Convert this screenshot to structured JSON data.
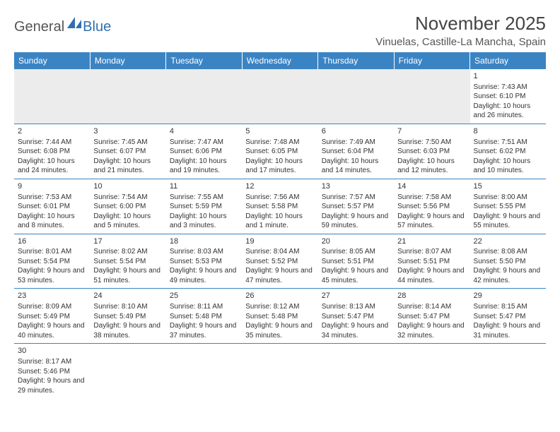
{
  "logo": {
    "text_main": "General",
    "text_accent": "Blue",
    "accent_color": "#2f6fb0",
    "main_color": "#555555"
  },
  "header": {
    "month_title": "November 2025",
    "location": "Vinuelas, Castille-La Mancha, Spain"
  },
  "colors": {
    "header_bg": "#3b84c4",
    "header_text": "#ffffff",
    "rule": "#3b84c4",
    "blank_bg": "#ececec"
  },
  "weekdays": [
    "Sunday",
    "Monday",
    "Tuesday",
    "Wednesday",
    "Thursday",
    "Friday",
    "Saturday"
  ],
  "days": {
    "1": {
      "sunrise": "7:43 AM",
      "sunset": "6:10 PM",
      "daylight": "10 hours and 26 minutes."
    },
    "2": {
      "sunrise": "7:44 AM",
      "sunset": "6:08 PM",
      "daylight": "10 hours and 24 minutes."
    },
    "3": {
      "sunrise": "7:45 AM",
      "sunset": "6:07 PM",
      "daylight": "10 hours and 21 minutes."
    },
    "4": {
      "sunrise": "7:47 AM",
      "sunset": "6:06 PM",
      "daylight": "10 hours and 19 minutes."
    },
    "5": {
      "sunrise": "7:48 AM",
      "sunset": "6:05 PM",
      "daylight": "10 hours and 17 minutes."
    },
    "6": {
      "sunrise": "7:49 AM",
      "sunset": "6:04 PM",
      "daylight": "10 hours and 14 minutes."
    },
    "7": {
      "sunrise": "7:50 AM",
      "sunset": "6:03 PM",
      "daylight": "10 hours and 12 minutes."
    },
    "8": {
      "sunrise": "7:51 AM",
      "sunset": "6:02 PM",
      "daylight": "10 hours and 10 minutes."
    },
    "9": {
      "sunrise": "7:53 AM",
      "sunset": "6:01 PM",
      "daylight": "10 hours and 8 minutes."
    },
    "10": {
      "sunrise": "7:54 AM",
      "sunset": "6:00 PM",
      "daylight": "10 hours and 5 minutes."
    },
    "11": {
      "sunrise": "7:55 AM",
      "sunset": "5:59 PM",
      "daylight": "10 hours and 3 minutes."
    },
    "12": {
      "sunrise": "7:56 AM",
      "sunset": "5:58 PM",
      "daylight": "10 hours and 1 minute."
    },
    "13": {
      "sunrise": "7:57 AM",
      "sunset": "5:57 PM",
      "daylight": "9 hours and 59 minutes."
    },
    "14": {
      "sunrise": "7:58 AM",
      "sunset": "5:56 PM",
      "daylight": "9 hours and 57 minutes."
    },
    "15": {
      "sunrise": "8:00 AM",
      "sunset": "5:55 PM",
      "daylight": "9 hours and 55 minutes."
    },
    "16": {
      "sunrise": "8:01 AM",
      "sunset": "5:54 PM",
      "daylight": "9 hours and 53 minutes."
    },
    "17": {
      "sunrise": "8:02 AM",
      "sunset": "5:54 PM",
      "daylight": "9 hours and 51 minutes."
    },
    "18": {
      "sunrise": "8:03 AM",
      "sunset": "5:53 PM",
      "daylight": "9 hours and 49 minutes."
    },
    "19": {
      "sunrise": "8:04 AM",
      "sunset": "5:52 PM",
      "daylight": "9 hours and 47 minutes."
    },
    "20": {
      "sunrise": "8:05 AM",
      "sunset": "5:51 PM",
      "daylight": "9 hours and 45 minutes."
    },
    "21": {
      "sunrise": "8:07 AM",
      "sunset": "5:51 PM",
      "daylight": "9 hours and 44 minutes."
    },
    "22": {
      "sunrise": "8:08 AM",
      "sunset": "5:50 PM",
      "daylight": "9 hours and 42 minutes."
    },
    "23": {
      "sunrise": "8:09 AM",
      "sunset": "5:49 PM",
      "daylight": "9 hours and 40 minutes."
    },
    "24": {
      "sunrise": "8:10 AM",
      "sunset": "5:49 PM",
      "daylight": "9 hours and 38 minutes."
    },
    "25": {
      "sunrise": "8:11 AM",
      "sunset": "5:48 PM",
      "daylight": "9 hours and 37 minutes."
    },
    "26": {
      "sunrise": "8:12 AM",
      "sunset": "5:48 PM",
      "daylight": "9 hours and 35 minutes."
    },
    "27": {
      "sunrise": "8:13 AM",
      "sunset": "5:47 PM",
      "daylight": "9 hours and 34 minutes."
    },
    "28": {
      "sunrise": "8:14 AM",
      "sunset": "5:47 PM",
      "daylight": "9 hours and 32 minutes."
    },
    "29": {
      "sunrise": "8:15 AM",
      "sunset": "5:47 PM",
      "daylight": "9 hours and 31 minutes."
    },
    "30": {
      "sunrise": "8:17 AM",
      "sunset": "5:46 PM",
      "daylight": "9 hours and 29 minutes."
    }
  },
  "labels": {
    "sunrise_prefix": "Sunrise: ",
    "sunset_prefix": "Sunset: ",
    "daylight_prefix": "Daylight: "
  },
  "grid": {
    "first_day_column": 6,
    "num_days": 30
  }
}
